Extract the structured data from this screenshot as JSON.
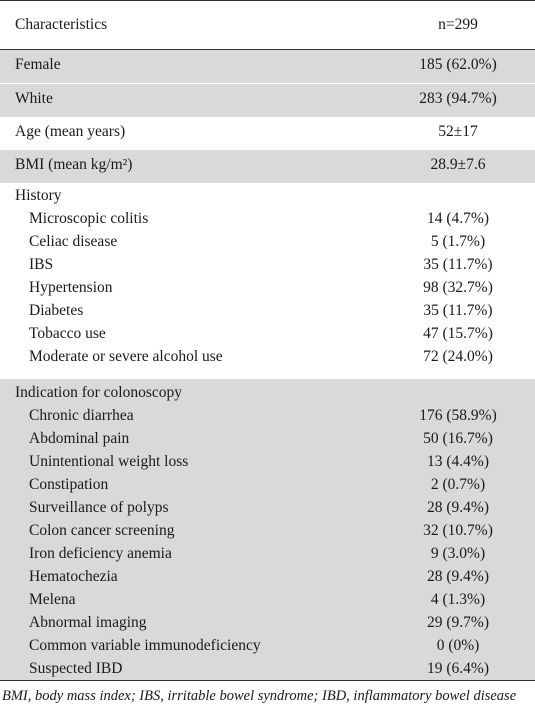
{
  "header": {
    "col1": "Characteristics",
    "col2": "n=299"
  },
  "rows": [
    {
      "label": "Female",
      "value": "185 (62.0%)"
    },
    {
      "label": "White",
      "value": "283 (94.7%)"
    },
    {
      "label": "Age (mean years)",
      "value": "52±17"
    },
    {
      "label": "BMI (mean kg/m²)",
      "value": "28.9±7.6"
    }
  ],
  "history": {
    "title": "History",
    "items": [
      {
        "label": "Microscopic colitis",
        "value": "14 (4.7%)"
      },
      {
        "label": "Celiac disease",
        "value": "5 (1.7%)"
      },
      {
        "label": "IBS",
        "value": "35 (11.7%)"
      },
      {
        "label": "Hypertension",
        "value": "98 (32.7%)"
      },
      {
        "label": "Diabetes",
        "value": "35 (11.7%)"
      },
      {
        "label": "Tobacco use",
        "value": "47 (15.7%)"
      },
      {
        "label": "Moderate or severe alcohol use",
        "value": "72 (24.0%)"
      }
    ]
  },
  "indication": {
    "title": "Indication for colonoscopy",
    "items": [
      {
        "label": "Chronic diarrhea",
        "value": "176 (58.9%)"
      },
      {
        "label": "Abdominal pain",
        "value": "50 (16.7%)"
      },
      {
        "label": "Unintentional weight loss",
        "value": "13 (4.4%)"
      },
      {
        "label": "Constipation",
        "value": "2 (0.7%)"
      },
      {
        "label": "Surveillance of polyps",
        "value": "28 (9.4%)"
      },
      {
        "label": "Colon cancer screening",
        "value": "32 (10.7%)"
      },
      {
        "label": "Iron deficiency anemia",
        "value": "9 (3.0%)"
      },
      {
        "label": "Hematochezia",
        "value": "28 (9.4%)"
      },
      {
        "label": "Melena",
        "value": "4 (1.3%)"
      },
      {
        "label": "Abnormal imaging",
        "value": "29 (9.7%)"
      },
      {
        "label": "Common variable immunodeficiency",
        "value": "0 (0%)"
      },
      {
        "label": "Suspected IBD",
        "value": "19 (6.4%)"
      }
    ]
  },
  "footnote": "BMI, body mass index; IBS, irritable bowel syndrome; IBD, inflammatory bowel disease",
  "colors": {
    "band": "#d9d9d9",
    "rule": "#333333"
  }
}
